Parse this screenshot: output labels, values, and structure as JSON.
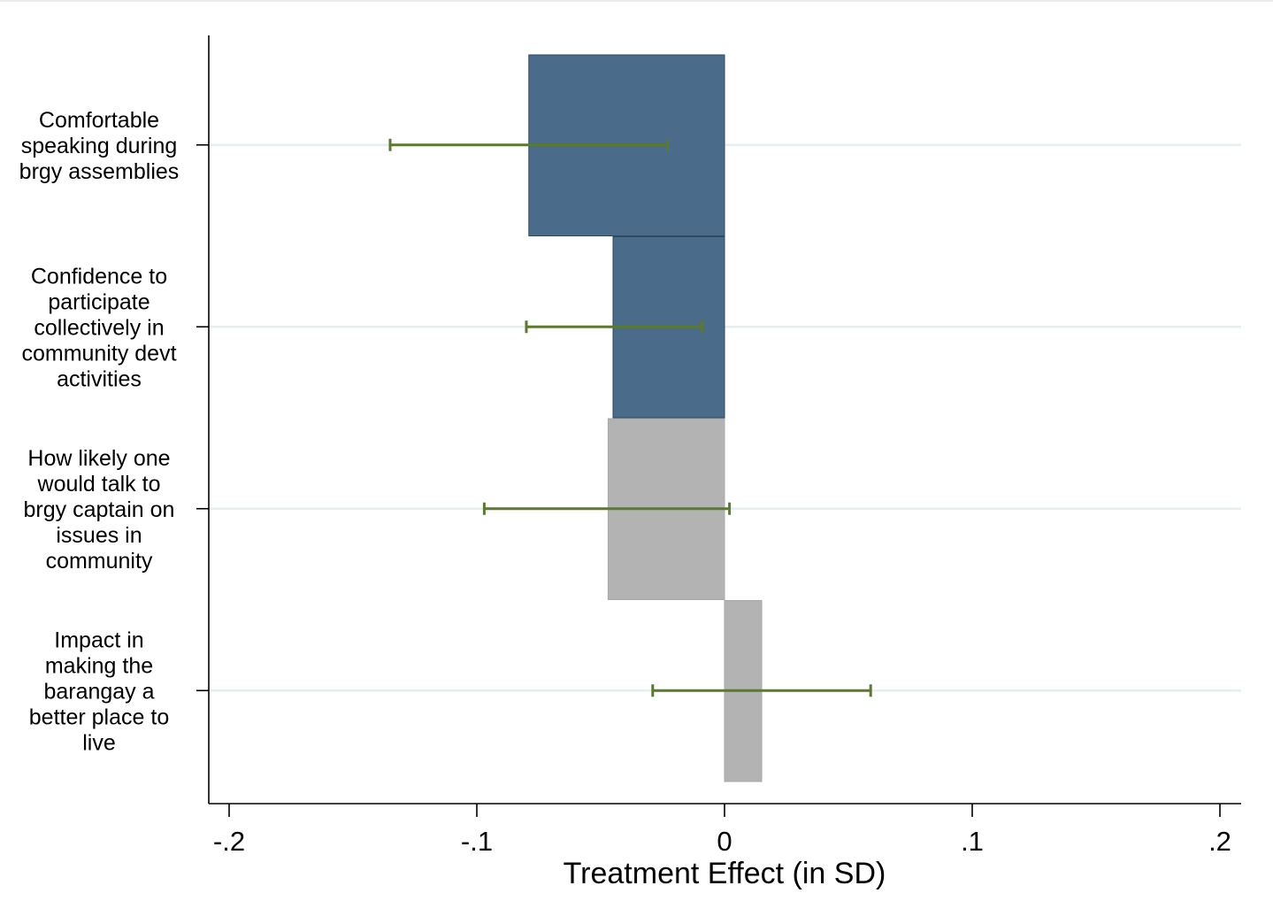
{
  "chart_data": {
    "type": "bar",
    "orientation": "horizontal",
    "title": "",
    "xlabel": "Treatment Effect (in SD)",
    "ylabel": "",
    "xlim": [
      -0.2,
      0.2
    ],
    "x_ticks": [
      -0.2,
      -0.1,
      0,
      0.1,
      0.2
    ],
    "x_tick_labels": [
      "-.2",
      "-.1",
      "0",
      ".1",
      ".2"
    ],
    "grid": "horizontal",
    "categories": [
      "Comfortable speaking during brgy assemblies",
      "Confidence to participate collectively in community devt activities",
      "How likely one would talk to brgy captain on issues in community",
      "Impact in making the barangay a better place to live"
    ],
    "category_label_lines": [
      [
        "Comfortable",
        "speaking during",
        "brgy assemblies"
      ],
      [
        "Confidence to",
        "participate",
        "collectively in",
        "community devt",
        "activities"
      ],
      [
        "How likely one",
        "would talk to",
        "brgy captain on",
        "issues in",
        "community"
      ],
      [
        "Impact in",
        "making the",
        "barangay a",
        "better place to",
        "live"
      ]
    ],
    "values": [
      -0.079,
      -0.045,
      -0.047,
      0.015
    ],
    "ci_low": [
      -0.135,
      -0.08,
      -0.097,
      -0.029
    ],
    "ci_high": [
      -0.023,
      -0.009,
      0.002,
      0.059
    ],
    "bar_colors": [
      "#4a6b8a",
      "#4a6b8a",
      "#b3b3b3",
      "#b3b3b3"
    ],
    "bar_edge_colors": [
      "#2e4a63",
      "#2e4a63",
      "#a8a8a8",
      "#a8a8a8"
    ],
    "error_bar_color": "#5a7a2e",
    "gridline_color": "#e6eef0"
  }
}
